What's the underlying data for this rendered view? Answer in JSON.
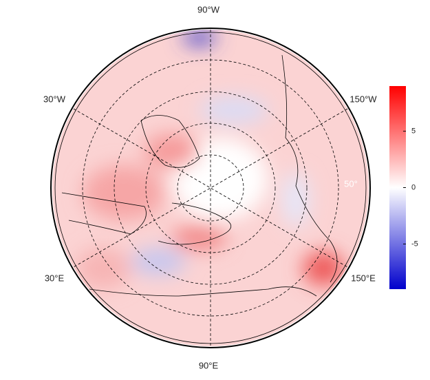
{
  "map": {
    "longitude_labels": [
      "90°W",
      "30°W",
      "150°W",
      "30°E",
      "150°E",
      "90°E"
    ],
    "latitude_labels": [
      "50°"
    ]
  },
  "colorbar": {
    "lim": [
      -9,
      9
    ],
    "ticks": [
      -5,
      0,
      5
    ],
    "colors": [
      "#0000cc",
      "#ffffff",
      "#ff0000"
    ]
  }
}
